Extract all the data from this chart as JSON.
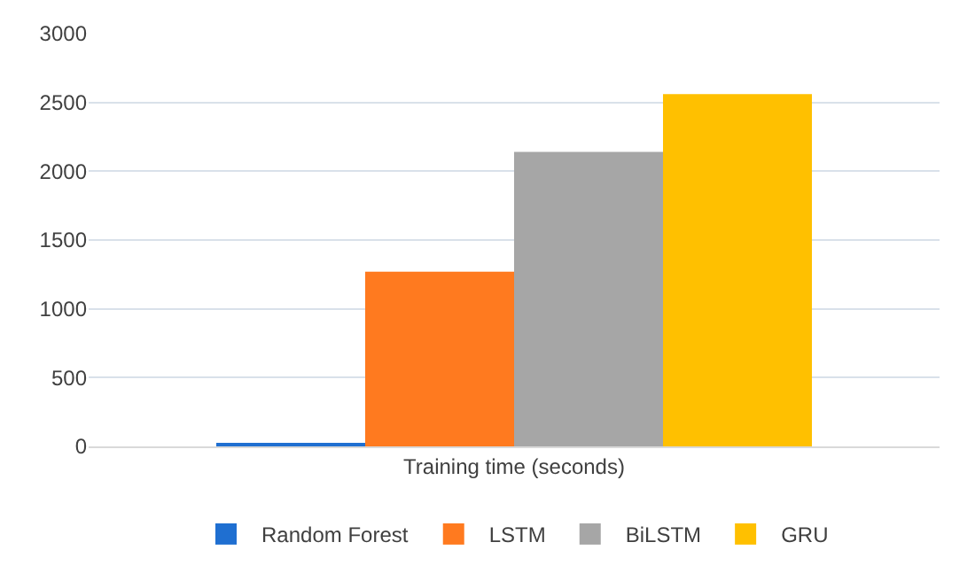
{
  "chart_data": {
    "type": "bar",
    "categories": [
      "Training time (seconds)"
    ],
    "series": [
      {
        "name": "Random Forest",
        "color": "#1f6fd1",
        "values": [
          25
        ]
      },
      {
        "name": "LSTM",
        "color": "#ff7a1f",
        "values": [
          1270
        ]
      },
      {
        "name": "BiLSTM",
        "color": "#a6a6a6",
        "values": [
          2140
        ]
      },
      {
        "name": "GRU",
        "color": "#ffc000",
        "values": [
          2560
        ]
      }
    ],
    "ylim": [
      0,
      3000
    ],
    "yticks": [
      0,
      500,
      1000,
      1500,
      2000,
      2500,
      3000
    ],
    "grid": "y",
    "legend": "bottom"
  }
}
